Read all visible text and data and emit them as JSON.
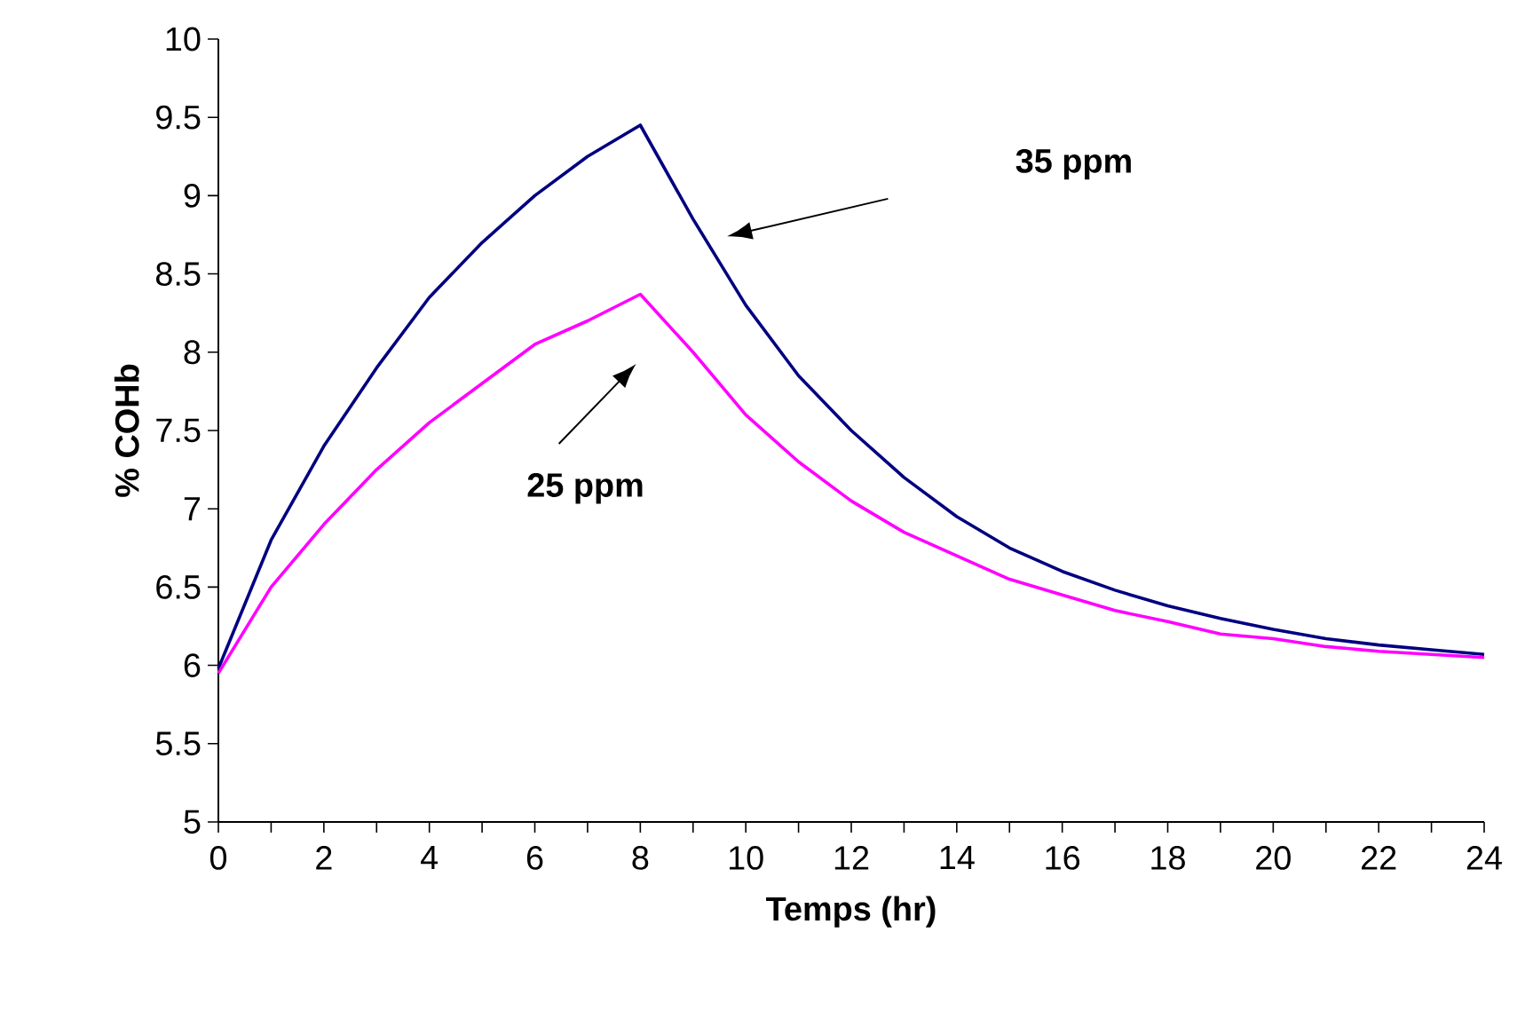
{
  "chart_data": {
    "type": "line",
    "xlabel": "Temps (hr)",
    "ylabel": "% COHb",
    "x": [
      0,
      1,
      2,
      3,
      4,
      5,
      6,
      7,
      8,
      9,
      10,
      11,
      12,
      13,
      14,
      15,
      16,
      17,
      18,
      19,
      20,
      21,
      22,
      23,
      24
    ],
    "series": [
      {
        "color": "#000080",
        "values": [
          5.98,
          6.8,
          7.4,
          7.9,
          8.35,
          8.7,
          9.0,
          9.25,
          9.45,
          8.85,
          8.3,
          7.85,
          7.5,
          7.2,
          6.95,
          6.75,
          6.6,
          6.48,
          6.38,
          6.3,
          6.23,
          6.17,
          6.13,
          6.1,
          6.07
        ]
      },
      {
        "color": "#ff00ff",
        "values": [
          5.95,
          6.5,
          6.9,
          7.25,
          7.55,
          7.8,
          8.05,
          8.2,
          8.37,
          8.0,
          7.6,
          7.3,
          7.05,
          6.85,
          6.7,
          6.55,
          6.45,
          6.35,
          6.28,
          6.2,
          6.17,
          6.12,
          6.09,
          6.07,
          6.05
        ]
      }
    ],
    "annotations": [
      "35 ppm",
      "25 ppm"
    ],
    "xlim": [
      0,
      24
    ],
    "ylim": [
      5,
      10
    ],
    "xticks": [
      0,
      2,
      4,
      6,
      8,
      10,
      12,
      14,
      16,
      18,
      20,
      22,
      24
    ],
    "yticks": [
      5,
      5.5,
      6,
      6.5,
      7,
      7.5,
      8,
      8.5,
      9,
      9.5,
      10
    ],
    "marker": "none",
    "line_style": "solid"
  }
}
